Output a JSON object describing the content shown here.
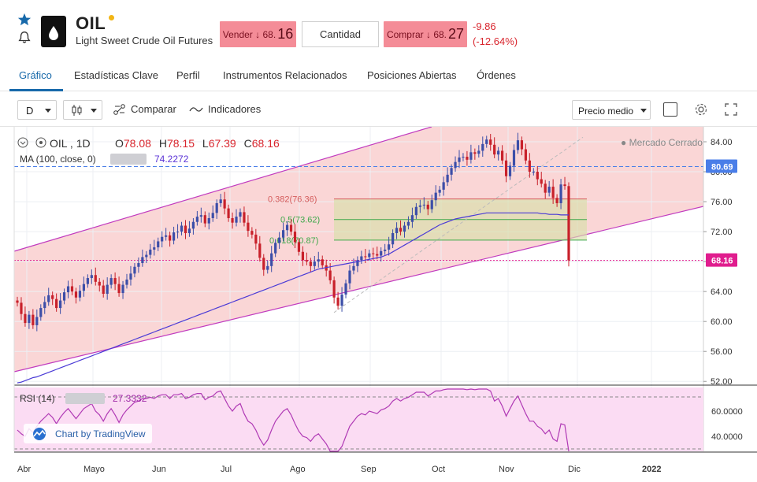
{
  "header": {
    "symbol": "OIL",
    "name": "Light Sweet Crude Oil Futures",
    "sell_label": "Vender",
    "sell_arrow": "↓",
    "sell_price_main": "68.",
    "sell_price_big": "16",
    "quantity_label": "Cantidad",
    "buy_label": "Comprar",
    "buy_arrow": "↓",
    "buy_price_main": "68.",
    "buy_price_big": "27",
    "change_abs": "-9.86",
    "change_pct": "(-12.64%)"
  },
  "tabs": [
    {
      "label": "Gráfico",
      "active": true
    },
    {
      "label": "Estadísticas Clave",
      "active": false
    },
    {
      "label": "Perfil",
      "active": false
    },
    {
      "label": "Instrumentos Relacionados",
      "active": false
    },
    {
      "label": "Posiciones Abiertas",
      "active": false
    },
    {
      "label": "Órdenes",
      "active": false
    }
  ],
  "toolbar": {
    "interval": "D",
    "compare_label": "Comparar",
    "indicators_label": "Indicadores",
    "price_type": "Precio medio"
  },
  "chart_data": {
    "type": "candlestick",
    "symbol_label": "OIL , 1D",
    "ohlc": {
      "O": "78.08",
      "H": "78.15",
      "L": "67.39",
      "C": "68.16"
    },
    "ma_label": "MA (100, close, 0)",
    "ma_value": "74.2272",
    "market_status": "Mercado Cerrado",
    "price_axis": {
      "ticks": [
        "84.00",
        "80.00",
        "76.00",
        "72.00",
        "68.00",
        "64.00",
        "60.00",
        "56.00",
        "52.00"
      ],
      "ylim": [
        51.5,
        86
      ]
    },
    "time_axis": [
      "Abr",
      "Mayo",
      "Jun",
      "Jul",
      "Ago",
      "Sep",
      "Oct",
      "Nov",
      "Dic",
      "2022"
    ],
    "price_markers": [
      {
        "value": "80.69",
        "color": "#4a7ee8"
      },
      {
        "value": "68.16",
        "color": "#e01d8e"
      }
    ],
    "fibonacci": [
      {
        "label": "0.382(76.36)",
        "value": 76.36,
        "color": "#d45b5b"
      },
      {
        "label": "0.5(73.62)",
        "value": 73.62,
        "color": "#3ea84a"
      },
      {
        "label": "0.618(70.87)",
        "value": 70.87,
        "color": "#3ea84a"
      }
    ],
    "closes": [
      62.5,
      61.0,
      59.8,
      60.9,
      59.5,
      60.6,
      61.8,
      62.6,
      63.5,
      63.0,
      61.8,
      62.8,
      63.9,
      64.7,
      64.0,
      63.2,
      64.1,
      65.0,
      65.8,
      66.2,
      65.3,
      64.8,
      63.7,
      64.9,
      65.8,
      65.0,
      63.8,
      64.9,
      65.6,
      66.4,
      67.3,
      67.8,
      68.6,
      68.9,
      69.6,
      69.9,
      70.7,
      71.3,
      71.5,
      70.8,
      71.9,
      72.0,
      72.8,
      71.8,
      72.4,
      73.3,
      74.0,
      74.2,
      73.1,
      73.8,
      74.5,
      75.8,
      76.3,
      75.1,
      73.8,
      73.2,
      74.0,
      74.6,
      73.2,
      72.1,
      71.6,
      70.4,
      68.5,
      66.9,
      67.4,
      69.1,
      70.5,
      71.2,
      72.2,
      72.9,
      72.0,
      70.6,
      69.3,
      68.2,
      68.0,
      67.4,
      68.0,
      68.3,
      67.5,
      66.8,
      65.5,
      63.2,
      62.1,
      63.6,
      65.1,
      66.8,
      67.4,
      68.2,
      68.7,
      68.6,
      69.1,
      69.0,
      68.8,
      69.4,
      69.6,
      70.3,
      71.8,
      72.5,
      72.0,
      72.8,
      73.3,
      74.2,
      75.3,
      75.5,
      75.6,
      75.0,
      76.2,
      77.2,
      77.6,
      78.6,
      79.6,
      80.5,
      81.3,
      81.9,
      82.0,
      81.6,
      82.6,
      82.4,
      82.8,
      83.7,
      84.3,
      83.6,
      82.3,
      82.8,
      81.5,
      79.4,
      80.8,
      82.9,
      84.2,
      83.0,
      81.5,
      80.0,
      80.0,
      79.0,
      78.4,
      77.2,
      78.0,
      76.5,
      75.8,
      78.3,
      78.1,
      68.16
    ],
    "ma": [
      51.8,
      51.9,
      52.1,
      52.3,
      52.5,
      52.6,
      52.8,
      53.0,
      53.2,
      53.4,
      53.6,
      53.8,
      54.0,
      54.2,
      54.4,
      54.6,
      54.8,
      55.0,
      55.2,
      55.4,
      55.6,
      55.8,
      56.0,
      56.2,
      56.4,
      56.6,
      56.8,
      57.0,
      57.2,
      57.4,
      57.6,
      57.8,
      58.0,
      58.2,
      58.4,
      58.6,
      58.8,
      59.0,
      59.2,
      59.4,
      59.6,
      59.8,
      60.0,
      60.2,
      60.4,
      60.6,
      60.8,
      61.0,
      61.2,
      61.4,
      61.6,
      61.8,
      62.0,
      62.2,
      62.4,
      62.6,
      62.8,
      63.0,
      63.2,
      63.4,
      63.6,
      63.8,
      64.0,
      64.2,
      64.4,
      64.6,
      64.8,
      65.0,
      65.2,
      65.4,
      65.6,
      65.8,
      66.0,
      66.2,
      66.4,
      66.6,
      66.8,
      67.0,
      67.1,
      67.2,
      67.3,
      67.4,
      67.5,
      67.6,
      67.7,
      67.8,
      67.9,
      68.0,
      68.1,
      68.2,
      68.3,
      68.4,
      68.5,
      68.6,
      68.8,
      69.0,
      69.3,
      69.6,
      69.9,
      70.2,
      70.5,
      70.8,
      71.1,
      71.4,
      71.7,
      72.0,
      72.3,
      72.6,
      72.9,
      73.1,
      73.3,
      73.5,
      73.7,
      73.8,
      73.9,
      74.0,
      74.1,
      74.2,
      74.3,
      74.4,
      74.5,
      74.5,
      74.5,
      74.5,
      74.5,
      74.5,
      74.5,
      74.5,
      74.5,
      74.5,
      74.5,
      74.5,
      74.5,
      74.5,
      74.4,
      74.4,
      74.3,
      74.3,
      74.3,
      74.2272,
      74.2272,
      74.2272
    ],
    "rsi_label": "RSI (14)",
    "rsi_value": "27.3332",
    "rsi_axis": [
      "60.0000",
      "40.0000"
    ],
    "rsi": [
      45,
      42,
      40,
      46,
      43,
      48,
      52,
      55,
      58,
      55,
      50,
      55,
      59,
      62,
      58,
      54,
      58,
      62,
      64,
      66,
      60,
      57,
      52,
      58,
      62,
      57,
      51,
      57,
      61,
      64,
      67,
      68,
      70,
      70,
      71,
      70,
      72,
      73,
      73,
      70,
      73,
      73,
      74,
      70,
      71,
      73,
      74,
      74,
      69,
      71,
      72,
      75,
      76,
      70,
      64,
      60,
      64,
      66,
      58,
      52,
      50,
      45,
      38,
      33,
      37,
      45,
      52,
      56,
      60,
      62,
      57,
      50,
      44,
      40,
      39,
      36,
      40,
      42,
      38,
      34,
      28,
      24,
      22,
      32,
      40,
      48,
      52,
      56,
      58,
      57,
      60,
      59,
      58,
      61,
      62,
      64,
      68,
      70,
      68,
      70,
      71,
      73,
      75,
      75,
      75,
      72,
      74,
      76,
      76,
      77,
      78,
      79,
      79,
      80,
      80,
      77,
      78,
      77,
      78,
      79,
      80,
      76,
      68,
      70,
      64,
      56,
      62,
      68,
      72,
      65,
      58,
      52,
      52,
      48,
      46,
      42,
      45,
      38,
      36,
      50,
      49,
      27.3332
    ]
  },
  "branding": {
    "tv_label": "Chart by TradingView"
  }
}
